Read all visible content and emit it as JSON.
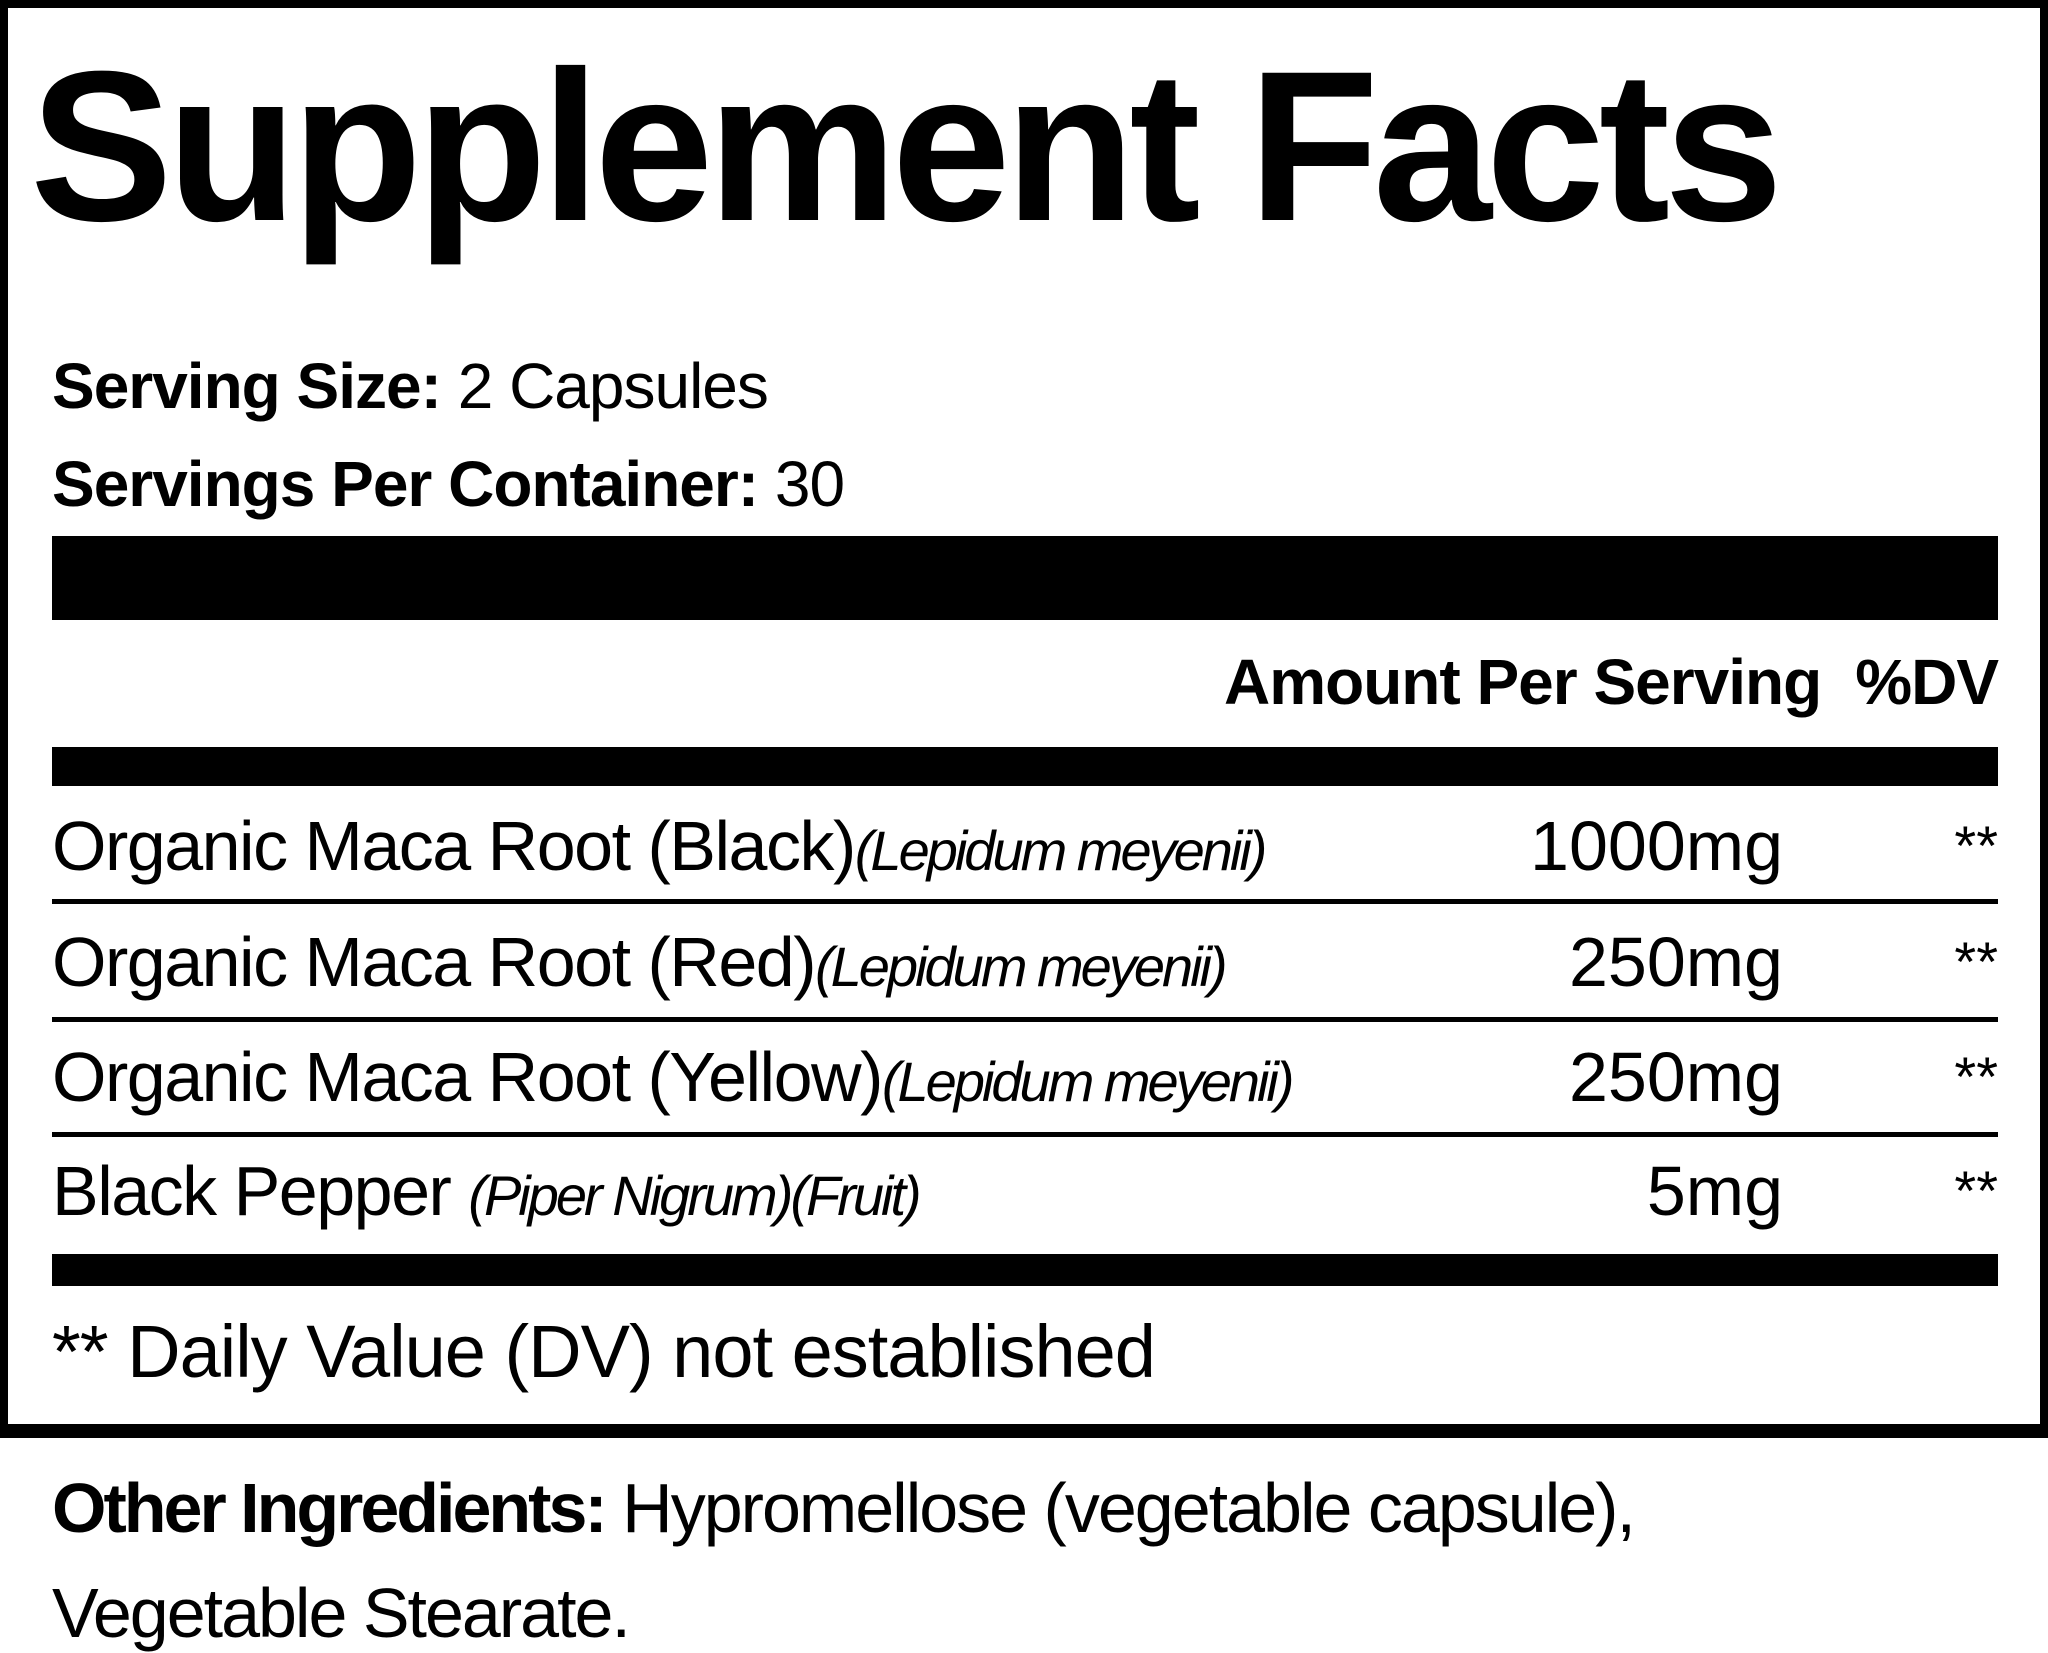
{
  "title": "Supplement Facts",
  "serving_size": {
    "label": "Serving Size:",
    "value": "2 Capsules"
  },
  "servings_per_container": {
    "label": "Servings Per Container:",
    "value": "30"
  },
  "header": {
    "amount": "Amount Per Serving",
    "dv": "%DV"
  },
  "ingredients": [
    {
      "name": "Organic Maca Root (Black)",
      "latin": "(Lepidum meyenii)",
      "amount": "1000mg",
      "dv": "**"
    },
    {
      "name": "Organic Maca Root (Red)",
      "latin": "(Lepidum meyenii)",
      "amount": "250mg",
      "dv": "**"
    },
    {
      "name": "Organic Maca Root (Yellow)",
      "latin": "(Lepidum meyenii)",
      "amount": "250mg",
      "dv": "**"
    },
    {
      "name": "Black Pepper ",
      "latin": "(Piper Nigrum)(Fruit)",
      "amount": "5mg",
      "dv": "**"
    }
  ],
  "footnote": "** Daily Value (DV) not established",
  "other_ingredients": {
    "label": "Other Ingredients:",
    "line1": " Hypromellose (vegetable capsule),",
    "line2": "Vegetable Stearate."
  }
}
